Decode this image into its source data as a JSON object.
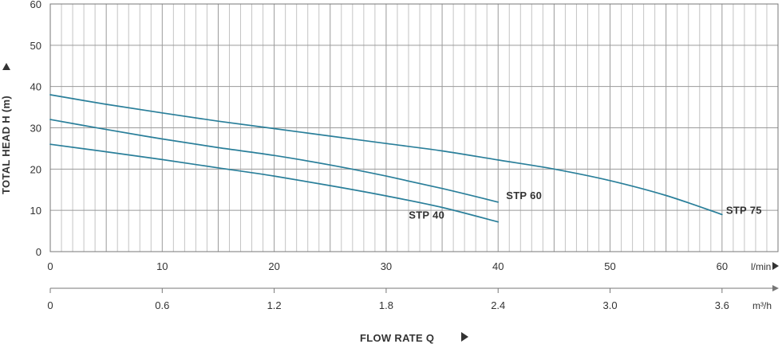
{
  "chart_data": {
    "type": "line",
    "xlabel": "FLOW RATE Q",
    "ylabel": "TOTAL HEAD H (m)",
    "xlim": [
      0,
      65
    ],
    "ylim": [
      0,
      60
    ],
    "x_ticks": [
      0,
      10,
      20,
      30,
      40,
      50,
      60
    ],
    "y_ticks": [
      0,
      10,
      20,
      30,
      40,
      50,
      60
    ],
    "x_unit": "l/min",
    "secondary_x": {
      "unit": "m³/h",
      "ticks": [
        "0",
        "0.6",
        "1.2",
        "1.8",
        "2.4",
        "3.0",
        "3.6"
      ],
      "positions_lmin": [
        0,
        10,
        20,
        30,
        40,
        50,
        60
      ]
    },
    "grid": true,
    "curve_color": "#2a7f9a",
    "series": [
      {
        "name": "STP 40",
        "x": [
          0,
          5,
          10,
          15,
          20,
          25,
          30,
          35,
          40
        ],
        "y": [
          26,
          24.2,
          22.3,
          20.3,
          18.3,
          16,
          13.5,
          10.7,
          7.2
        ]
      },
      {
        "name": "STP 60",
        "x": [
          0,
          5,
          10,
          15,
          20,
          25,
          30,
          35,
          40
        ],
        "y": [
          32,
          29.6,
          27.3,
          25.2,
          23.3,
          21,
          18.3,
          15.3,
          12
        ]
      },
      {
        "name": "STP 75",
        "x": [
          0,
          5,
          10,
          15,
          20,
          25,
          30,
          35,
          40,
          45,
          50,
          55,
          60
        ],
        "y": [
          38,
          35.7,
          33.6,
          31.6,
          29.8,
          28,
          26.2,
          24.4,
          22.2,
          20,
          17.2,
          13.6,
          9
        ]
      }
    ]
  }
}
